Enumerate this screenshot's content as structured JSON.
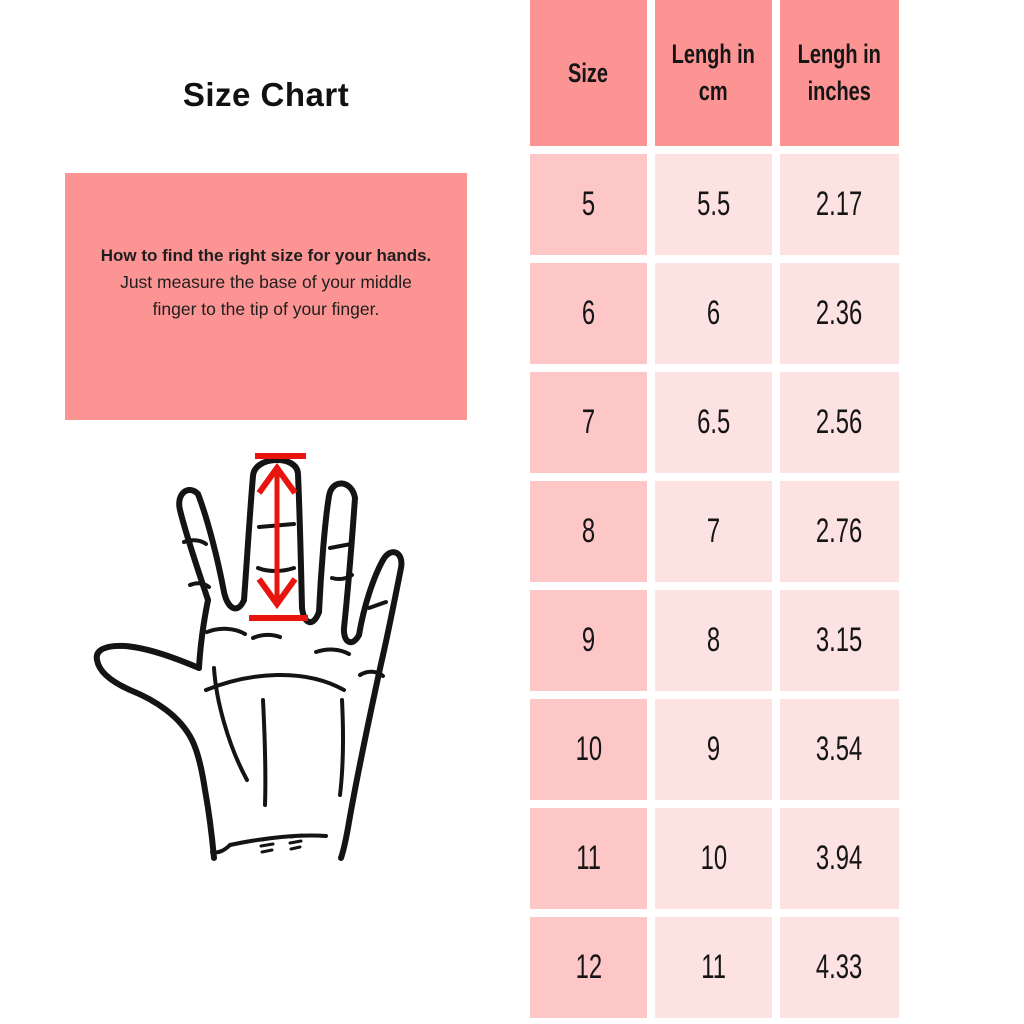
{
  "page": {
    "background": "#ffffff"
  },
  "left_panel": {
    "title": "Size Chart",
    "info_box": {
      "heading": "How to find the right size for your hands.",
      "body": "Just measure the base of your middle finger to the tip of your finger.",
      "background_color": "#fc9494",
      "text_color": "#1e1e1e"
    },
    "hand_illustration": {
      "description": "black outline drawing of an open hand, palm facing viewer",
      "measure_arrow": "red double-headed vertical arrow marking middle finger length from base to tip",
      "outline_color": "#141414",
      "arrow_color": "#e8150f"
    }
  },
  "table": {
    "headers": [
      {
        "label": "Size",
        "lines": [
          "Size"
        ]
      },
      {
        "label": "Lengh in cm",
        "lines": [
          "Lengh in",
          "cm"
        ]
      },
      {
        "label": "Lengh in inches",
        "lines": [
          "Lengh in",
          "inches"
        ]
      }
    ],
    "rows": [
      [
        "5",
        "5.5",
        "2.17"
      ],
      [
        "6",
        "6",
        "2.36"
      ],
      [
        "7",
        "6.5",
        "2.56"
      ],
      [
        "8",
        "7",
        "2.76"
      ],
      [
        "9",
        "8",
        "3.15"
      ],
      [
        "10",
        "9",
        "3.54"
      ],
      [
        "11",
        "10",
        "3.94"
      ],
      [
        "12",
        "11",
        "4.33"
      ]
    ],
    "colors": {
      "header_bg": "#fc9494",
      "size_column_bg": "#fdc7c8",
      "data_column_bg": "#fde2e2",
      "text": "#151515",
      "gap": "#ffffff"
    }
  },
  "chart_data": {
    "type": "table",
    "title": "Size Chart",
    "columns": [
      "Size",
      "Lengh in cm",
      "Lengh in inches"
    ],
    "rows": [
      [
        5,
        5.5,
        2.17
      ],
      [
        6,
        6,
        2.36
      ],
      [
        7,
        6.5,
        2.56
      ],
      [
        8,
        7,
        2.76
      ],
      [
        9,
        8,
        3.15
      ],
      [
        10,
        9,
        3.54
      ],
      [
        11,
        10,
        3.94
      ],
      [
        12,
        11,
        4.33
      ]
    ],
    "notes": "How to find the right size for your hands. Just measure the base of your middle finger to the tip of your finger."
  }
}
